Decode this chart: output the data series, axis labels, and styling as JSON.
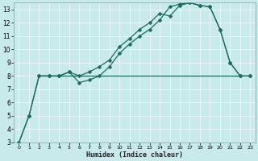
{
  "xlabel": "Humidex (Indice chaleur)",
  "bg_color": "#c8eaea",
  "grid_color": "#b0d0d0",
  "line_color": "#1e6b5e",
  "xlim": [
    -0.5,
    23.5
  ],
  "ylim": [
    3,
    13.5
  ],
  "yticks": [
    3,
    4,
    5,
    6,
    7,
    8,
    9,
    10,
    11,
    12,
    13
  ],
  "xticks": [
    0,
    1,
    2,
    3,
    4,
    5,
    6,
    7,
    8,
    9,
    10,
    11,
    12,
    13,
    14,
    15,
    16,
    17,
    18,
    19,
    20,
    21,
    22,
    23
  ],
  "curve1_x": [
    0,
    1,
    2,
    3,
    4,
    5,
    6,
    7,
    8,
    9,
    10,
    11,
    12,
    13,
    14,
    15,
    16,
    17,
    18,
    19,
    20,
    21,
    22,
    23
  ],
  "curve1_y": [
    3.0,
    5.0,
    8.0,
    8.0,
    8.0,
    8.3,
    7.5,
    7.7,
    8.0,
    8.7,
    9.7,
    10.4,
    11.0,
    11.5,
    12.2,
    13.2,
    13.4,
    13.5,
    13.3,
    13.2,
    11.5,
    9.0,
    8.0,
    8.0
  ],
  "curve2_x": [
    0,
    1,
    2,
    3,
    4,
    5,
    6,
    7,
    8,
    9,
    10,
    11,
    12,
    13,
    14,
    15,
    16,
    17,
    18,
    19,
    20,
    21,
    22,
    23
  ],
  "curve2_y": [
    3.0,
    5.0,
    8.0,
    8.0,
    8.0,
    8.3,
    8.0,
    8.3,
    8.7,
    9.2,
    10.2,
    10.8,
    11.5,
    12.0,
    12.7,
    12.5,
    13.3,
    13.5,
    13.3,
    13.2,
    11.5,
    9.0,
    8.0,
    8.0
  ],
  "hline_y": 8.0,
  "hline_xstart": 2,
  "hline_xend": 22,
  "markersize": 2.5,
  "linewidth": 0.9,
  "tick_labelsize": 5.0,
  "xlabel_fontsize": 6.0
}
